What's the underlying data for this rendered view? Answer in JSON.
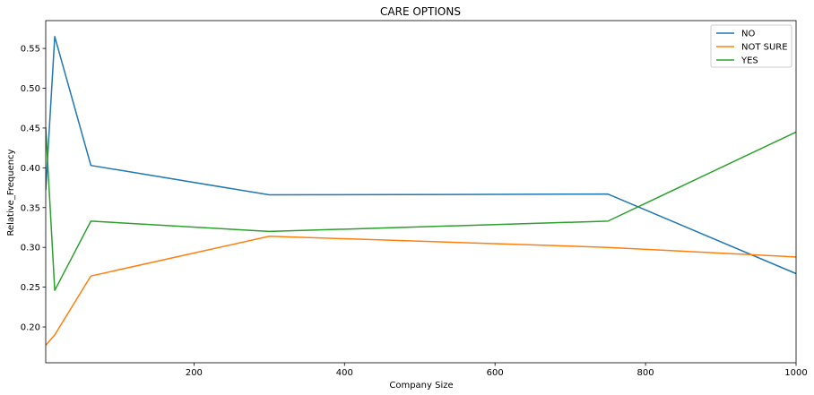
{
  "chart_data": {
    "type": "line",
    "title": "CARE OPTIONS",
    "xlabel": "Company Size",
    "ylabel": "Relative_Frequency",
    "x": [
      3,
      15,
      63,
      300,
      750,
      1000
    ],
    "xlim": [
      3,
      1000
    ],
    "ylim": [
      0.155,
      0.585
    ],
    "xticks": [
      200,
      400,
      600,
      800,
      1000
    ],
    "yticks": [
      0.2,
      0.25,
      0.3,
      0.35,
      0.4,
      0.45,
      0.5,
      0.55
    ],
    "xtick_labels": [
      "200",
      "400",
      "600",
      "800",
      "1000"
    ],
    "ytick_labels": [
      "0.20",
      "0.25",
      "0.30",
      "0.35",
      "0.40",
      "0.45",
      "0.50",
      "0.55"
    ],
    "grid": false,
    "legend_position": "top-right",
    "series": [
      {
        "name": "NO",
        "color": "#1f77b4",
        "values": [
          0.372,
          0.565,
          0.403,
          0.366,
          0.367,
          0.267
        ]
      },
      {
        "name": "NOT SURE",
        "color": "#ff7f0e",
        "values": [
          0.177,
          0.19,
          0.264,
          0.314,
          0.3,
          0.288
        ]
      },
      {
        "name": "YES",
        "color": "#2ca02c",
        "values": [
          0.451,
          0.246,
          0.333,
          0.32,
          0.333,
          0.445
        ]
      }
    ]
  }
}
